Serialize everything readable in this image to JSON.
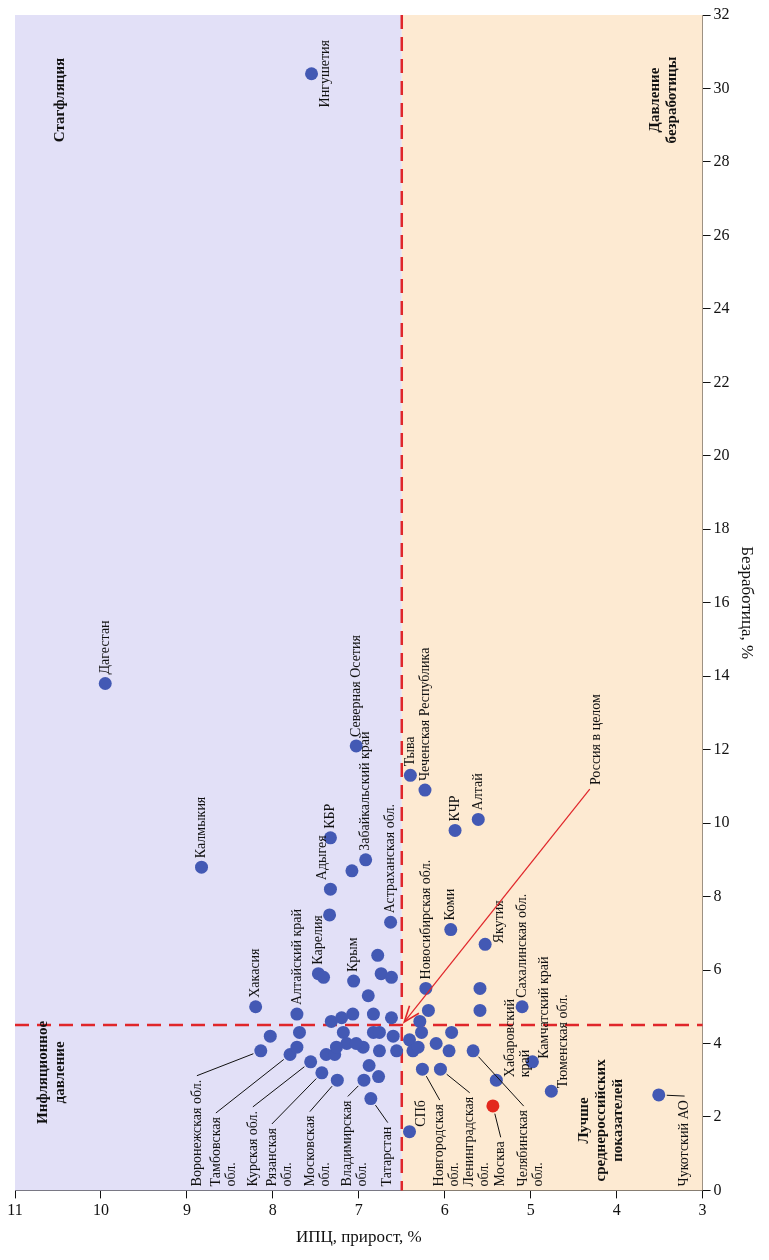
{
  "chart_data": {
    "type": "scatter",
    "xlabel": "ИПЦ, прирост, %",
    "ylabel": "Безработица, %",
    "xlim": [
      11,
      3
    ],
    "xticks": [
      11,
      10,
      9,
      8,
      7,
      6,
      5,
      4,
      3
    ],
    "ylim": [
      0,
      32
    ],
    "yticks": [
      0,
      2,
      4,
      6,
      8,
      10,
      12,
      14,
      16,
      18,
      20,
      22,
      24,
      26,
      28,
      30,
      32
    ],
    "marker": "circle",
    "series": [
      {
        "color": "#4359b4",
        "x": [
          7.55,
          9.95,
          8.83,
          7.03,
          6.4,
          6.23,
          5.88,
          5.61,
          7.33,
          6.92,
          7.08,
          7.33,
          7.34,
          6.63,
          5.93,
          5.53,
          6.78,
          8.2,
          7.72,
          7.47,
          7.41,
          7.06,
          6.74,
          6.62,
          6.89,
          7.07,
          6.83,
          6.62,
          7.32,
          7.2,
          6.22,
          6.19,
          6.29,
          5.59,
          5.59,
          5.1,
          4.98,
          5.4,
          5.67,
          5.92,
          5.95,
          6.1,
          6.05,
          6.26,
          6.41,
          6.86,
          6.77,
          6.88,
          6.94,
          7.25,
          7.43,
          7.56,
          7.38,
          7.28,
          7.8,
          7.72,
          7.69,
          8.03,
          8.14,
          7.18,
          7.14,
          7.26,
          6.95,
          6.83,
          6.76,
          6.6,
          6.56,
          6.76,
          6.41,
          6.37,
          6.27,
          6.31,
          7.03,
          4.76,
          3.51
        ],
        "values": [
          30.4,
          13.8,
          8.8,
          12.1,
          11.3,
          10.9,
          9.8,
          10.1,
          9.6,
          9.0,
          8.7,
          8.2,
          7.5,
          7.3,
          7.1,
          6.7,
          6.4,
          5.0,
          4.8,
          5.9,
          5.8,
          5.7,
          5.9,
          5.8,
          5.3,
          4.8,
          4.8,
          4.7,
          4.6,
          4.7,
          5.5,
          4.9,
          4.6,
          5.5,
          4.9,
          5.0,
          3.5,
          3.0,
          3.8,
          4.3,
          3.8,
          4.0,
          3.3,
          3.3,
          1.6,
          2.5,
          3.1,
          3.4,
          3.0,
          3.0,
          3.2,
          3.5,
          3.7,
          3.7,
          3.7,
          3.9,
          4.3,
          4.2,
          3.8,
          4.3,
          4.0,
          3.9,
          3.9,
          4.3,
          3.8,
          4.2,
          3.8,
          4.3,
          4.1,
          3.8,
          4.3,
          3.9,
          4.0,
          2.7,
          2.6
        ]
      },
      {
        "color": "#e3281e",
        "x": [
          5.44
        ],
        "values": [
          2.3
        ]
      }
    ],
    "ref_lines": [
      {
        "axis": "x",
        "value": 6.5,
        "color": "#e0262a",
        "line_style": "dashed"
      },
      {
        "axis": "y",
        "value": 4.5,
        "color": "#e0262a",
        "line_style": "dashed"
      }
    ],
    "bands": [
      {
        "axis": "x",
        "from": 11,
        "to": 6.5,
        "color": "#e2e0f7"
      },
      {
        "axis": "x",
        "from": 6.5,
        "to": 3,
        "color": "#fdead2"
      }
    ],
    "annotations": [
      {
        "text": "Ингушетия",
        "x": 7.55,
        "y": 30.4
      },
      {
        "text": "Дагестан",
        "x": 9.95,
        "y": 13.8
      },
      {
        "text": "Калмыкия",
        "x": 8.83,
        "y": 8.8
      },
      {
        "text": "Хакасия",
        "x": 8.2,
        "y": 5.0
      },
      {
        "text": "Алтайский край",
        "x": 7.72,
        "y": 4.8
      },
      {
        "text": "Карелия",
        "x": 7.47,
        "y": 5.9
      },
      {
        "text": "Адыгея",
        "x": 7.33,
        "y": 8.2
      },
      {
        "text": "КБР",
        "x": 7.33,
        "y": 9.6
      },
      {
        "text": "Крым",
        "x": 7.06,
        "y": 5.7
      },
      {
        "text": "Северная Осетия",
        "x": 7.03,
        "y": 12.1
      },
      {
        "text": "Забайкальский край",
        "x": 6.92,
        "y": 9.0
      },
      {
        "text": "Астраханская обл.",
        "x": 6.63,
        "y": 7.3
      },
      {
        "text": "Тыва",
        "x": 6.4,
        "y": 11.3
      },
      {
        "text": "Чеченская Республика",
        "x": 6.23,
        "y": 10.9
      },
      {
        "text": "Новосибирская обл.",
        "x": 6.22,
        "y": 5.5
      },
      {
        "text": "КЧР",
        "x": 5.88,
        "y": 9.8
      },
      {
        "text": "Алтай",
        "x": 5.61,
        "y": 10.1
      },
      {
        "text": "Коми",
        "x": 5.93,
        "y": 7.1
      },
      {
        "text": "Якутия",
        "x": 5.53,
        "y": 6.7
      },
      {
        "text": "Сахалинская обл.",
        "x": 5.1,
        "y": 5.0
      },
      {
        "text": "Хабаровский край",
        "x": 5.4,
        "y": 3.0
      },
      {
        "text": "Камчатский край",
        "x": 4.98,
        "y": 3.5
      },
      {
        "text": "Тюменская обл.",
        "x": 4.76,
        "y": 2.7
      },
      {
        "text": "Чукотский АО",
        "x": 3.51,
        "y": 2.6
      },
      {
        "text": "Москва",
        "x": 5.44,
        "y": 2.3
      },
      {
        "text": "Челябинская обл.",
        "x": 5.67,
        "y": 3.8
      },
      {
        "text": "Ленинградская обл.",
        "x": 6.05,
        "y": 3.3
      },
      {
        "text": "Новгородская обл.",
        "x": 6.26,
        "y": 3.3
      },
      {
        "text": "СПб",
        "x": 6.41,
        "y": 1.6
      },
      {
        "text": "Татарстан",
        "x": 6.86,
        "y": 2.5
      },
      {
        "text": "Владимирская обл.",
        "x": 6.94,
        "y": 3.0
      },
      {
        "text": "Московская обл.",
        "x": 7.25,
        "y": 3.0
      },
      {
        "text": "Рязанская обл.",
        "x": 7.43,
        "y": 3.2
      },
      {
        "text": "Курская обл.",
        "x": 7.56,
        "y": 3.5
      },
      {
        "text": "Тамбовская обл.",
        "x": 7.8,
        "y": 3.7
      },
      {
        "text": "Воронежская обл.",
        "x": 8.14,
        "y": 3.8
      },
      "Стагфляция",
      "Давление безработицы",
      "Инфляционное давление",
      "Лучше среднероссийских показателей",
      "Россия в целом"
    ]
  }
}
